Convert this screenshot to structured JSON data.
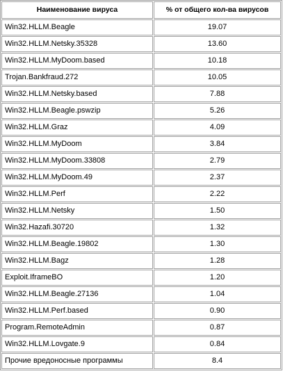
{
  "table": {
    "headers": {
      "name": "Наименование вируса",
      "percent": "% от общего кол-ва вирусов"
    },
    "rows": [
      {
        "name": "Win32.HLLM.Beagle",
        "percent": "19.07"
      },
      {
        "name": "Win32.HLLM.Netsky.35328",
        "percent": "13.60"
      },
      {
        "name": "Win32.HLLM.MyDoom.based",
        "percent": "10.18"
      },
      {
        "name": "Trojan.Bankfraud.272",
        "percent": "10.05"
      },
      {
        "name": "Win32.HLLM.Netsky.based",
        "percent": "7.88"
      },
      {
        "name": "Win32.HLLM.Beagle.pswzip",
        "percent": "5.26"
      },
      {
        "name": "Win32.HLLM.Graz",
        "percent": "4.09"
      },
      {
        "name": "Win32.HLLM.MyDoom",
        "percent": "3.84"
      },
      {
        "name": "Win32.HLLM.MyDoom.33808",
        "percent": "2.79"
      },
      {
        "name": "Win32.HLLM.MyDoom.49",
        "percent": "2.37"
      },
      {
        "name": "Win32.HLLM.Perf",
        "percent": "2.22"
      },
      {
        "name": "Win32.HLLM.Netsky",
        "percent": "1.50"
      },
      {
        "name": "Win32.Hazafi.30720",
        "percent": "1.32"
      },
      {
        "name": "Win32.HLLM.Beagle.19802",
        "percent": "1.30"
      },
      {
        "name": "Win32.HLLM.Bagz",
        "percent": "1.28"
      },
      {
        "name": "Exploit.IframeBO",
        "percent": "1.20"
      },
      {
        "name": "Win32.HLLM.Beagle.27136",
        "percent": "1.04"
      },
      {
        "name": "Win32.HLLM.Perf.based",
        "percent": "0.90"
      },
      {
        "name": "Program.RemoteAdmin",
        "percent": "0.87"
      },
      {
        "name": "Win32.HLLM.Lovgate.9",
        "percent": "0.84"
      },
      {
        "name": "Прочие вредоносные программы",
        "percent": "8.4"
      }
    ]
  }
}
